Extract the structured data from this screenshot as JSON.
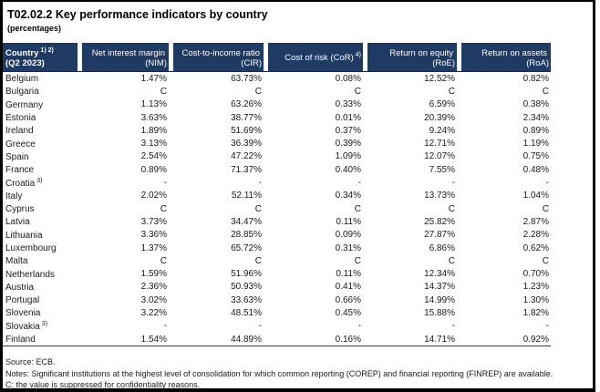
{
  "title": "T02.02.2 Key performance indicators by country",
  "subtitle": "(percentages)",
  "colors": {
    "header_bg": "#1f3a63",
    "rule": "#16294a",
    "text": "#1a1a1a",
    "frame": "#000000"
  },
  "table": {
    "header": {
      "country": {
        "line1": "Country",
        "sup": "1) 2)",
        "line2": "(Q2 2023)"
      },
      "columns": [
        {
          "line1": "Net interest margin",
          "sup": "",
          "line2": "(NIM)"
        },
        {
          "line1": "Cost-to-income ratio",
          "sup": "",
          "line2": "(CIR)"
        },
        {
          "line1": "Cost of risk (CoR)",
          "sup": "4)",
          "line2": ""
        },
        {
          "line1": "Return on equity",
          "sup": "",
          "line2": "(RoE)"
        },
        {
          "line1": "Return on assets",
          "sup": "",
          "line2": "(RoA)"
        }
      ]
    },
    "rows": [
      {
        "country": "Belgium",
        "sup": "",
        "values": [
          "1.47%",
          "63.73%",
          "0.08%",
          "12.52%",
          "0.82%"
        ]
      },
      {
        "country": "Bulgaria",
        "sup": "",
        "values": [
          "C",
          "C",
          "C",
          "C",
          "C"
        ]
      },
      {
        "country": "Germany",
        "sup": "",
        "values": [
          "1.13%",
          "63.26%",
          "0.33%",
          "6.59%",
          "0.38%"
        ]
      },
      {
        "country": "Estonia",
        "sup": "",
        "values": [
          "3.63%",
          "38.77%",
          "0.01%",
          "20.39%",
          "2.34%"
        ]
      },
      {
        "country": "Ireland",
        "sup": "",
        "values": [
          "1.89%",
          "51.69%",
          "0.37%",
          "9.24%",
          "0.89%"
        ]
      },
      {
        "country": "Greece",
        "sup": "",
        "values": [
          "3.13%",
          "36.39%",
          "0.39%",
          "12.71%",
          "1.19%"
        ]
      },
      {
        "country": "Spain",
        "sup": "",
        "values": [
          "2.54%",
          "47.22%",
          "1.09%",
          "12.07%",
          "0.75%"
        ]
      },
      {
        "country": "France",
        "sup": "",
        "values": [
          "0.89%",
          "71.37%",
          "0.40%",
          "7.55%",
          "0.48%"
        ]
      },
      {
        "country": "Croatia",
        "sup": "3)",
        "values": [
          "-",
          "-",
          "-",
          "-",
          "-"
        ]
      },
      {
        "country": "Italy",
        "sup": "",
        "values": [
          "2.02%",
          "52.11%",
          "0.34%",
          "13.73%",
          "1.04%"
        ]
      },
      {
        "country": "Cyprus",
        "sup": "",
        "values": [
          "C",
          "C",
          "C",
          "C",
          "C"
        ]
      },
      {
        "country": "Latvia",
        "sup": "",
        "values": [
          "3.73%",
          "34.47%",
          "0.11%",
          "25.82%",
          "2.87%"
        ]
      },
      {
        "country": "Lithuania",
        "sup": "",
        "values": [
          "3.36%",
          "28.85%",
          "0.09%",
          "27.87%",
          "2.28%"
        ]
      },
      {
        "country": "Luxembourg",
        "sup": "",
        "values": [
          "1.37%",
          "65.72%",
          "0.31%",
          "6.86%",
          "0.62%"
        ]
      },
      {
        "country": "Malta",
        "sup": "",
        "values": [
          "C",
          "C",
          "C",
          "C",
          "C"
        ]
      },
      {
        "country": "Netherlands",
        "sup": "",
        "values": [
          "1.59%",
          "51.96%",
          "0.11%",
          "12.34%",
          "0.70%"
        ]
      },
      {
        "country": "Austria",
        "sup": "",
        "values": [
          "2.36%",
          "50.93%",
          "0.41%",
          "14.37%",
          "1.23%"
        ]
      },
      {
        "country": "Portugal",
        "sup": "",
        "values": [
          "3.02%",
          "33.63%",
          "0.66%",
          "14.99%",
          "1.30%"
        ]
      },
      {
        "country": "Slovenia",
        "sup": "",
        "values": [
          "3.22%",
          "48.51%",
          "0.45%",
          "15.88%",
          "1.82%"
        ]
      },
      {
        "country": "Slovakia",
        "sup": "3)",
        "values": [
          "-",
          "-",
          "-",
          "-",
          "-"
        ]
      },
      {
        "country": "Finland",
        "sup": "",
        "values": [
          "1.54%",
          "44.89%",
          "0.16%",
          "14.71%",
          "0.92%"
        ]
      }
    ]
  },
  "footer": {
    "source": "Source: ECB.",
    "notes": "Notes: Significant institutions at the highest level of consolidation for which common reporting (COREP) and financial reporting (FINREP) are available.",
    "confidentiality": "C: the value is suppressed for confidentiality reasons."
  }
}
